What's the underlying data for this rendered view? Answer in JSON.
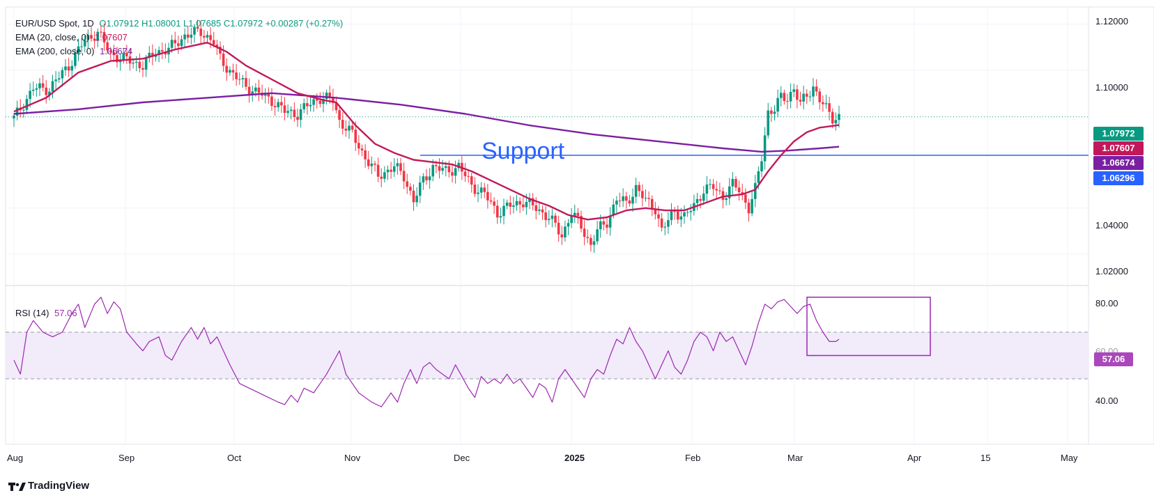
{
  "header": {
    "symbol": "EUR/USD Spot, 1D",
    "ohlc": "O1.07912  H1.08001  L1.07685  C1.07972  +0.00287 (+0.27%)",
    "ema20_label": "EMA (20, close, 0)",
    "ema20_value": "1.07607",
    "ema200_label": "EMA (200, close, 0)",
    "ema200_value": "1.06674"
  },
  "rsi_legend": {
    "label": "RSI (14)",
    "value": "57.06"
  },
  "annotation": {
    "support_text": "Support"
  },
  "price_axis": {
    "ticks": [
      "1.12000",
      "1.10000",
      "1.04000",
      "1.02000"
    ],
    "labels": {
      "last": "1.07972",
      "ema20": "1.07607",
      "ema200": "1.06674",
      "support": "1.06296"
    }
  },
  "rsi_axis": {
    "ticks": [
      "80.00",
      "60.00",
      "40.00"
    ],
    "current": "57.06"
  },
  "time_axis": [
    "Aug",
    "Sep",
    "Oct",
    "Nov",
    "Dec",
    "2025",
    "Feb",
    "Mar",
    "Apr",
    "15",
    "May"
  ],
  "brand": "TradingView",
  "colors": {
    "up": "#089981",
    "down": "#f23645",
    "ema20": "#c2185b",
    "ema200": "#7b1fa2",
    "support": "#2962ff",
    "rsi": "#9c27b0",
    "rsi_band": "#f1ebfa"
  },
  "chart_data": {
    "type": "candlestick",
    "date_range": [
      "2024-07-31",
      "2025-03-25"
    ],
    "ylim": [
      1.015,
      1.127
    ],
    "rsi_ylim": [
      20,
      80
    ],
    "support_level": 1.06296,
    "last_close": 1.07972,
    "ema20_last": 1.07607,
    "ema200_last": 1.06674,
    "rsi_last": 57.06,
    "rsi_levels": [
      60,
      40
    ],
    "price_path": [
      [
        0,
        1.079
      ],
      [
        6,
        1.092
      ],
      [
        11,
        1.092
      ],
      [
        17,
        1.102
      ],
      [
        22,
        1.113
      ],
      [
        26,
        1.1165
      ],
      [
        30,
        1.107
      ],
      [
        36,
        1.104
      ],
      [
        40,
        1.102
      ],
      [
        44,
        1.108
      ],
      [
        48,
        1.109
      ],
      [
        53,
        1.115
      ],
      [
        58,
        1.117
      ],
      [
        62,
        1.112
      ],
      [
        64,
        1.105
      ],
      [
        68,
        1.098
      ],
      [
        72,
        1.093
      ],
      [
        76,
        1.09
      ],
      [
        80,
        1.087
      ],
      [
        84,
        1.082
      ],
      [
        88,
        1.081
      ],
      [
        92,
        1.0855
      ],
      [
        95,
        1.088
      ],
      [
        99,
        1.087
      ],
      [
        101,
        1.078
      ],
      [
        105,
        1.072
      ],
      [
        109,
        1.062
      ],
      [
        113,
        1.054
      ],
      [
        118,
        1.058
      ],
      [
        121,
        1.054
      ],
      [
        124,
        1.043
      ],
      [
        127,
        1.052
      ],
      [
        130,
        1.058
      ],
      [
        134,
        1.056
      ],
      [
        138,
        1.058
      ],
      [
        142,
        1.05
      ],
      [
        146,
        1.046
      ],
      [
        150,
        1.038
      ],
      [
        154,
        1.041
      ],
      [
        158,
        1.043
      ],
      [
        162,
        1.04
      ],
      [
        166,
        1.036
      ],
      [
        170,
        1.028
      ],
      [
        173,
        1.038
      ],
      [
        176,
        1.032
      ],
      [
        179,
        1.024
      ],
      [
        181,
        1.03
      ],
      [
        184,
        1.034
      ],
      [
        187,
        1.044
      ],
      [
        190,
        1.042
      ],
      [
        193,
        1.049
      ],
      [
        196,
        1.043
      ],
      [
        199,
        1.04
      ],
      [
        201,
        1.03
      ],
      [
        205,
        1.039
      ],
      [
        208,
        1.036
      ],
      [
        211,
        1.041
      ],
      [
        214,
        1.048
      ],
      [
        217,
        1.049
      ],
      [
        220,
        1.045
      ],
      [
        223,
        1.05
      ],
      [
        225,
        1.048
      ],
      [
        228,
        1.04
      ],
      [
        230,
        1.048
      ],
      [
        232,
        1.062
      ],
      [
        234,
        1.082
      ],
      [
        236,
        1.083
      ],
      [
        238,
        1.088
      ],
      [
        240,
        1.088
      ],
      [
        242,
        1.092
      ],
      [
        244,
        1.085
      ],
      [
        246,
        1.089
      ],
      [
        248,
        1.093
      ],
      [
        250,
        1.087
      ],
      [
        252,
        1.083
      ],
      [
        254,
        1.0795
      ],
      [
        256,
        1.0797
      ]
    ],
    "ema20_path": [
      [
        0,
        1.082
      ],
      [
        10,
        1.088
      ],
      [
        20,
        1.099
      ],
      [
        30,
        1.104
      ],
      [
        40,
        1.105
      ],
      [
        50,
        1.109
      ],
      [
        60,
        1.112
      ],
      [
        66,
        1.108
      ],
      [
        72,
        1.102
      ],
      [
        80,
        1.096
      ],
      [
        88,
        1.09
      ],
      [
        96,
        1.087
      ],
      [
        100,
        1.086
      ],
      [
        106,
        1.076
      ],
      [
        112,
        1.068
      ],
      [
        118,
        1.064
      ],
      [
        124,
        1.061
      ],
      [
        130,
        1.06
      ],
      [
        136,
        1.059
      ],
      [
        142,
        1.056
      ],
      [
        148,
        1.052
      ],
      [
        154,
        1.048
      ],
      [
        160,
        1.044
      ],
      [
        166,
        1.041
      ],
      [
        172,
        1.037
      ],
      [
        178,
        1.035
      ],
      [
        184,
        1.036
      ],
      [
        190,
        1.039
      ],
      [
        196,
        1.04
      ],
      [
        202,
        1.039
      ],
      [
        208,
        1.039
      ],
      [
        214,
        1.042
      ],
      [
        220,
        1.045
      ],
      [
        226,
        1.046
      ],
      [
        230,
        1.048
      ],
      [
        234,
        1.056
      ],
      [
        238,
        1.063
      ],
      [
        242,
        1.069
      ],
      [
        246,
        1.073
      ],
      [
        250,
        1.075
      ],
      [
        256,
        1.0761
      ]
    ],
    "ema200_path": [
      [
        0,
        1.081
      ],
      [
        20,
        1.083
      ],
      [
        40,
        1.086
      ],
      [
        60,
        1.088
      ],
      [
        80,
        1.09
      ],
      [
        100,
        1.088
      ],
      [
        120,
        1.085
      ],
      [
        140,
        1.081
      ],
      [
        160,
        1.076
      ],
      [
        180,
        1.072
      ],
      [
        200,
        1.069
      ],
      [
        220,
        1.066
      ],
      [
        232,
        1.0645
      ],
      [
        240,
        1.065
      ],
      [
        250,
        1.066
      ],
      [
        256,
        1.0667
      ]
    ],
    "rsi_path": [
      [
        0,
        48
      ],
      [
        2,
        42
      ],
      [
        4,
        60
      ],
      [
        6,
        65
      ],
      [
        9,
        60
      ],
      [
        12,
        58
      ],
      [
        15,
        60
      ],
      [
        18,
        68
      ],
      [
        20,
        72
      ],
      [
        22,
        62
      ],
      [
        25,
        72
      ],
      [
        27,
        75
      ],
      [
        29,
        68
      ],
      [
        31,
        73
      ],
      [
        33,
        70
      ],
      [
        35,
        60
      ],
      [
        38,
        55
      ],
      [
        40,
        52
      ],
      [
        42,
        56
      ],
      [
        45,
        58
      ],
      [
        47,
        50
      ],
      [
        49,
        48
      ],
      [
        52,
        56
      ],
      [
        55,
        62
      ],
      [
        57,
        57
      ],
      [
        59,
        62
      ],
      [
        61,
        55
      ],
      [
        63,
        58
      ],
      [
        65,
        52
      ],
      [
        67,
        46
      ],
      [
        70,
        38
      ],
      [
        73,
        36
      ],
      [
        76,
        34
      ],
      [
        79,
        32
      ],
      [
        82,
        30
      ],
      [
        84,
        29
      ],
      [
        86,
        33
      ],
      [
        88,
        30
      ],
      [
        90,
        36
      ],
      [
        93,
        34
      ],
      [
        95,
        38
      ],
      [
        97,
        42
      ],
      [
        99,
        47
      ],
      [
        101,
        52
      ],
      [
        103,
        42
      ],
      [
        105,
        38
      ],
      [
        107,
        34
      ],
      [
        109,
        32
      ],
      [
        111,
        30
      ],
      [
        114,
        28
      ],
      [
        117,
        34
      ],
      [
        119,
        30
      ],
      [
        121,
        38
      ],
      [
        123,
        44
      ],
      [
        125,
        38
      ],
      [
        127,
        45
      ],
      [
        129,
        47
      ],
      [
        131,
        44
      ],
      [
        133,
        42
      ],
      [
        135,
        40
      ],
      [
        137,
        46
      ],
      [
        139,
        41
      ],
      [
        141,
        36
      ],
      [
        143,
        32
      ],
      [
        145,
        41
      ],
      [
        147,
        38
      ],
      [
        149,
        40
      ],
      [
        151,
        38
      ],
      [
        153,
        42
      ],
      [
        155,
        38
      ],
      [
        157,
        40
      ],
      [
        159,
        36
      ],
      [
        161,
        32
      ],
      [
        163,
        38
      ],
      [
        165,
        36
      ],
      [
        167,
        30
      ],
      [
        169,
        40
      ],
      [
        171,
        44
      ],
      [
        173,
        40
      ],
      [
        175,
        36
      ],
      [
        177,
        32
      ],
      [
        179,
        40
      ],
      [
        181,
        44
      ],
      [
        183,
        42
      ],
      [
        185,
        50
      ],
      [
        187,
        57
      ],
      [
        189,
        55
      ],
      [
        191,
        62
      ],
      [
        193,
        56
      ],
      [
        195,
        52
      ],
      [
        197,
        46
      ],
      [
        199,
        40
      ],
      [
        201,
        46
      ],
      [
        203,
        52
      ],
      [
        205,
        45
      ],
      [
        207,
        42
      ],
      [
        209,
        48
      ],
      [
        211,
        56
      ],
      [
        213,
        60
      ],
      [
        215,
        58
      ],
      [
        217,
        52
      ],
      [
        219,
        60
      ],
      [
        221,
        56
      ],
      [
        223,
        58
      ],
      [
        225,
        52
      ],
      [
        227,
        46
      ],
      [
        229,
        54
      ],
      [
        231,
        64
      ],
      [
        233,
        72
      ],
      [
        235,
        70
      ],
      [
        237,
        73
      ],
      [
        239,
        74
      ],
      [
        241,
        71
      ],
      [
        243,
        68
      ],
      [
        245,
        71
      ],
      [
        247,
        72
      ],
      [
        249,
        65
      ],
      [
        251,
        60
      ],
      [
        253,
        56
      ],
      [
        255,
        56
      ],
      [
        256,
        57
      ]
    ]
  }
}
